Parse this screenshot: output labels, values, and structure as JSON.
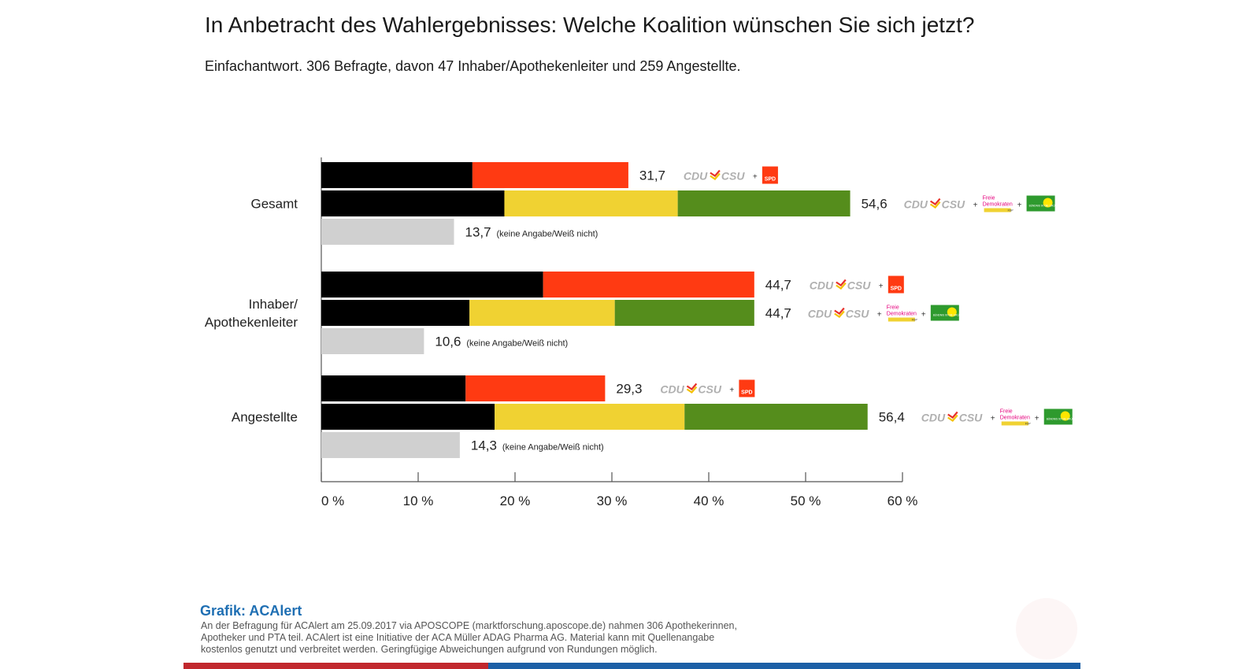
{
  "title": "In Anbetracht des Wahlergebnisses: Welche Koalition wünschen Sie sich jetzt?",
  "subtitle": "Einfachantwort. 306 Befragte, davon 47 Inhaber/Apothekenleiter und 259 Angestellte.",
  "credit": "Grafik: ACAlert",
  "note": "An der Befragung für ACAlert am 25.09.2017 via APOSCOPE (marktforschung.aposcope.de) nahmen 306 Apothekerinnen, Apotheker und PTA teil. ACAlert ist eine Initiative der ACA Müller ADAG Pharma AG. Material kann mit Quellenangabe kostenlos genutzt und verbreitet werden. Geringfügige Abweichungen aufgrund von Rundungen möglich.",
  "logos": {
    "cdu": "CDU",
    "csu": "CSU",
    "spd": "SPD",
    "fdp_line1": "Freie",
    "fdp_line2": "Demokraten",
    "fdp_line3": "FDP",
    "gruene": "BÜNDNIS 90 DIE GRÜNEN",
    "plus": "+"
  },
  "colors": {
    "cdu": "#000000",
    "spd": "#ff3a12",
    "fdp": "#f0d232",
    "gruene": "#558d1c",
    "none": "#d0d0d0",
    "fdp_magenta": "#e5007d"
  },
  "chart_data": {
    "type": "bar",
    "orientation": "horizontal",
    "stacked": true,
    "xlim": [
      0,
      60
    ],
    "x_ticks": [
      "0 %",
      "10 %",
      "20 %",
      "30 %",
      "40 %",
      "50 %",
      "60 %"
    ],
    "groups": [
      {
        "label": "Gesamt",
        "bars": [
          {
            "coalition": "CDU/CSU + SPD",
            "total_label": "31,7",
            "total": 31.7,
            "segments": [
              {
                "party": "cdu",
                "value": 15.6
              },
              {
                "party": "spd",
                "value": 16.1
              }
            ]
          },
          {
            "coalition": "CDU/CSU + FDP + Grüne",
            "total_label": "54,6",
            "total": 54.6,
            "segments": [
              {
                "party": "cdu",
                "value": 18.9
              },
              {
                "party": "fdp",
                "value": 17.9
              },
              {
                "party": "gruene",
                "value": 17.8
              }
            ]
          },
          {
            "coalition": "none",
            "total_label": "13,7",
            "total": 13.7,
            "note": "(keine Angabe/Weiß nicht)",
            "segments": [
              {
                "party": "none",
                "value": 13.7
              }
            ]
          }
        ]
      },
      {
        "label": "Inhaber/\nApothekenleiter",
        "bars": [
          {
            "coalition": "CDU/CSU + SPD",
            "total_label": "44,7",
            "total": 44.7,
            "segments": [
              {
                "party": "cdu",
                "value": 22.9
              },
              {
                "party": "spd",
                "value": 21.8
              }
            ]
          },
          {
            "coalition": "CDU/CSU + FDP + Grüne",
            "total_label": "44,7",
            "total": 44.7,
            "segments": [
              {
                "party": "cdu",
                "value": 15.3
              },
              {
                "party": "fdp",
                "value": 15.0
              },
              {
                "party": "gruene",
                "value": 14.4
              }
            ]
          },
          {
            "coalition": "none",
            "total_label": "10,6",
            "total": 10.6,
            "note": "(keine Angabe/Weiß nicht)",
            "segments": [
              {
                "party": "none",
                "value": 10.6
              }
            ]
          }
        ]
      },
      {
        "label": "Angestellte",
        "bars": [
          {
            "coalition": "CDU/CSU + SPD",
            "total_label": "29,3",
            "total": 29.3,
            "segments": [
              {
                "party": "cdu",
                "value": 14.9
              },
              {
                "party": "spd",
                "value": 14.4
              }
            ]
          },
          {
            "coalition": "CDU/CSU + FDP + Grüne",
            "total_label": "56,4",
            "total": 56.4,
            "segments": [
              {
                "party": "cdu",
                "value": 17.9
              },
              {
                "party": "fdp",
                "value": 19.6
              },
              {
                "party": "gruene",
                "value": 18.9
              }
            ]
          },
          {
            "coalition": "none",
            "total_label": "14,3",
            "total": 14.3,
            "note": "(keine Angabe/Weiß nicht)",
            "segments": [
              {
                "party": "none",
                "value": 14.3
              }
            ]
          }
        ]
      }
    ],
    "grid": false,
    "legend": "inline party logos right of each bar"
  }
}
